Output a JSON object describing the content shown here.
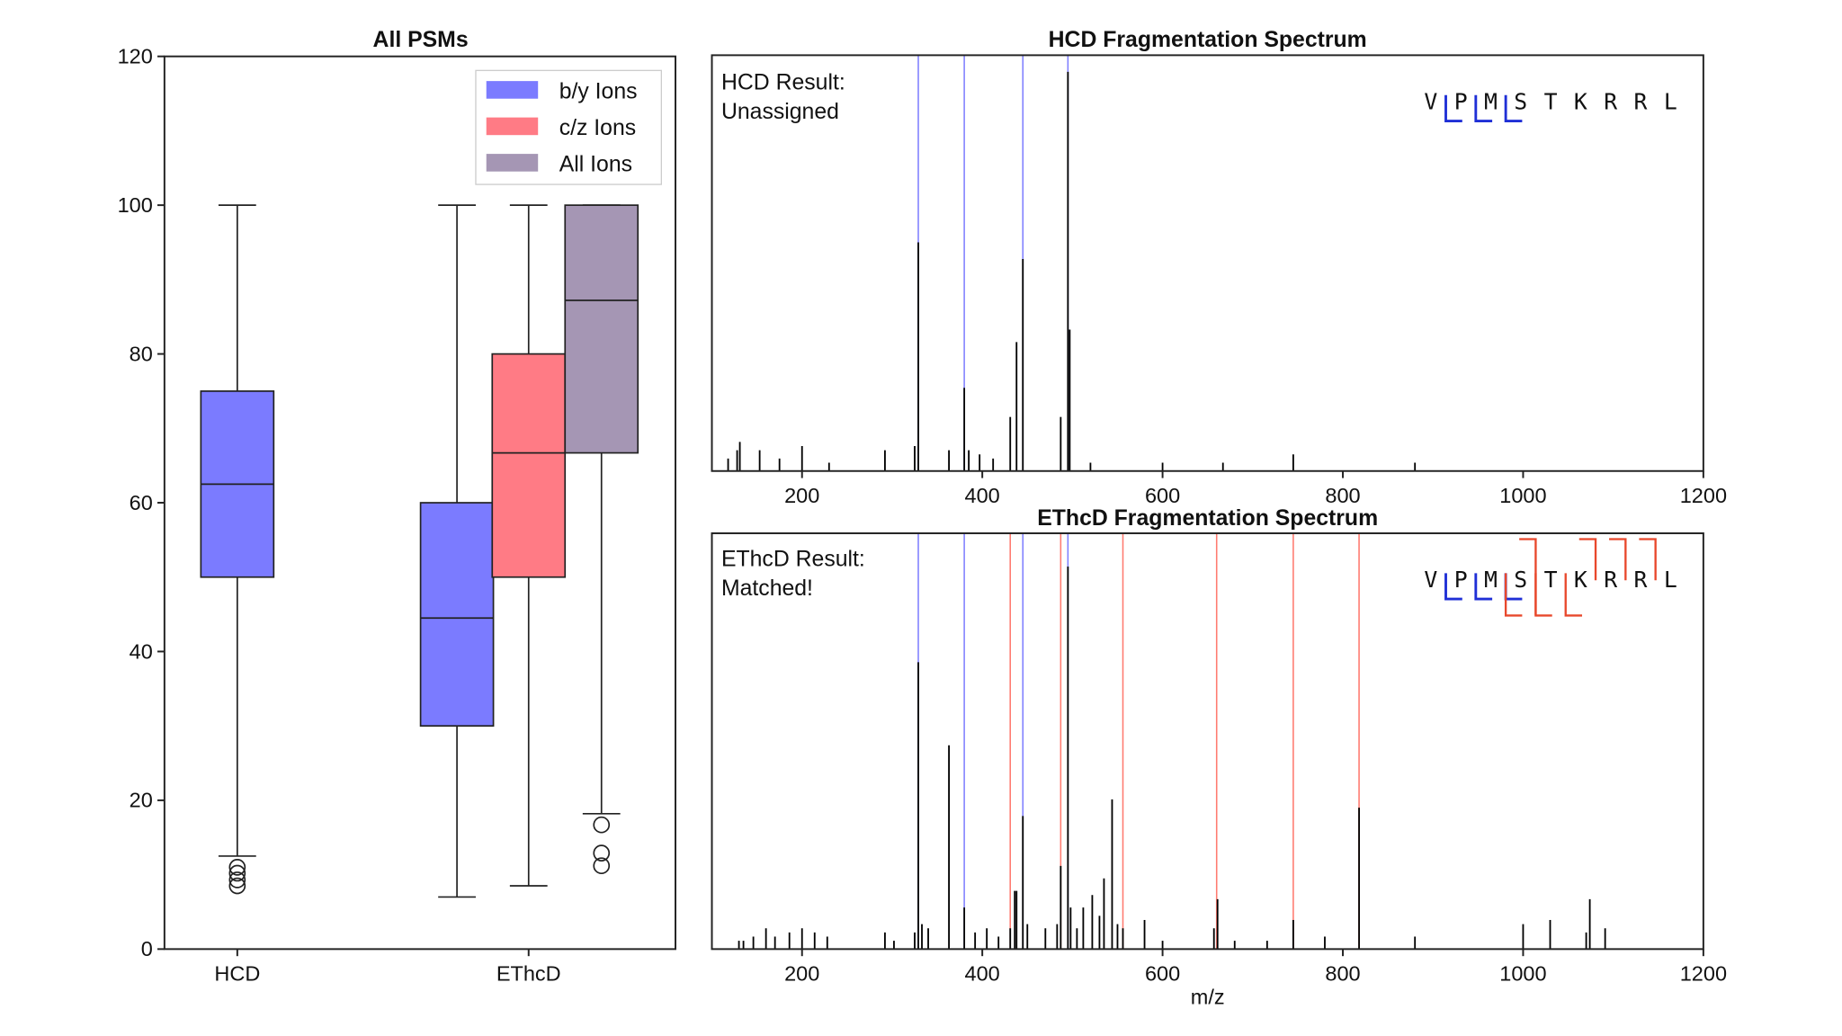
{
  "chart_data": [
    {
      "type": "box",
      "title": "All PSMs",
      "ylim": [
        0,
        120
      ],
      "yticks": [
        0,
        20,
        40,
        60,
        80,
        100,
        120
      ],
      "categories": [
        "HCD",
        "EThcD"
      ],
      "legend": {
        "placement": "top-right",
        "entries": [
          {
            "name": "b/y Ions",
            "color": "#7b7bff"
          },
          {
            "name": "c/z Ions",
            "color": "#ff7b85"
          },
          {
            "name": "All Ions",
            "color": "#a596b4"
          }
        ]
      },
      "boxes": [
        {
          "category": "HCD",
          "series": "b/y Ions",
          "whisker_low": 12.5,
          "q1": 50,
          "median": 62.5,
          "q3": 75,
          "whisker_high": 100,
          "outliers": [
            8.5,
            9.3,
            10.2,
            11
          ]
        },
        {
          "category": "EThcD",
          "series": "b/y Ions",
          "whisker_low": 7,
          "q1": 30,
          "median": 44.5,
          "q3": 60,
          "whisker_high": 100,
          "outliers": []
        },
        {
          "category": "EThcD",
          "series": "c/z Ions",
          "whisker_low": 8.5,
          "q1": 50,
          "median": 66.7,
          "q3": 80,
          "whisker_high": 100,
          "outliers": []
        },
        {
          "category": "EThcD",
          "series": "All Ions",
          "whisker_low": 18.2,
          "q1": 66.7,
          "median": 87.2,
          "q3": 100,
          "whisker_high": 100,
          "outliers": [
            16.7,
            12.9,
            11.2
          ]
        }
      ]
    },
    {
      "type": "spectrum",
      "title": "HCD Fragmentation Spectrum",
      "result_label": "HCD Result:",
      "result_value": "Unassigned",
      "result_color": "#e8482c",
      "xlim": [
        100,
        1200
      ],
      "xticks": [
        200,
        400,
        600,
        800,
        1000,
        1200
      ],
      "sequence": [
        "V",
        "P",
        "M",
        "S",
        "T",
        "K",
        "R",
        "R",
        "L"
      ],
      "b_ions_after": [
        1,
        2,
        3
      ],
      "c_ions_after": [],
      "z_ions_before": [],
      "matched_by_mz": [
        329,
        380,
        445,
        495
      ],
      "matched_cz_mz": [],
      "peaks": [
        [
          118,
          0.03
        ],
        [
          128,
          0.05
        ],
        [
          131,
          0.07
        ],
        [
          153,
          0.05
        ],
        [
          175,
          0.03
        ],
        [
          200,
          0.06
        ],
        [
          230,
          0.02
        ],
        [
          292,
          0.05
        ],
        [
          325,
          0.06
        ],
        [
          329,
          0.55
        ],
        [
          363,
          0.05
        ],
        [
          380,
          0.2
        ],
        [
          385,
          0.05
        ],
        [
          397,
          0.04
        ],
        [
          412,
          0.03
        ],
        [
          431,
          0.13
        ],
        [
          438,
          0.31
        ],
        [
          445,
          0.51
        ],
        [
          487,
          0.13
        ],
        [
          495,
          0.96
        ],
        [
          497,
          0.34
        ],
        [
          520,
          0.02
        ],
        [
          600,
          0.02
        ],
        [
          667,
          0.02
        ],
        [
          745,
          0.04
        ],
        [
          880,
          0.02
        ]
      ]
    },
    {
      "type": "spectrum",
      "title": "EThcD Fragmentation Spectrum",
      "result_label": "EThcD Result:",
      "result_value": "Matched!",
      "result_color": "#1a9a5c",
      "xlabel": "m/z",
      "xlim": [
        100,
        1200
      ],
      "xticks": [
        200,
        400,
        600,
        800,
        1000,
        1200
      ],
      "sequence": [
        "V",
        "P",
        "M",
        "S",
        "T",
        "K",
        "R",
        "R",
        "L"
      ],
      "b_ions_after": [
        1,
        2,
        3
      ],
      "c_ions_after": [
        3,
        4,
        5
      ],
      "z_ions_before": [
        4,
        6,
        7,
        8
      ],
      "matched_by_mz": [
        329,
        380,
        445,
        495
      ],
      "matched_cz_mz": [
        431,
        487,
        556,
        660,
        745,
        818
      ],
      "peaks": [
        [
          130,
          0.02
        ],
        [
          135,
          0.02
        ],
        [
          146,
          0.03
        ],
        [
          160,
          0.05
        ],
        [
          170,
          0.03
        ],
        [
          186,
          0.04
        ],
        [
          200,
          0.05
        ],
        [
          214,
          0.04
        ],
        [
          228,
          0.03
        ],
        [
          292,
          0.04
        ],
        [
          302,
          0.02
        ],
        [
          325,
          0.04
        ],
        [
          329,
          0.69
        ],
        [
          333,
          0.06
        ],
        [
          340,
          0.05
        ],
        [
          363,
          0.49
        ],
        [
          380,
          0.1
        ],
        [
          392,
          0.04
        ],
        [
          405,
          0.05
        ],
        [
          418,
          0.03
        ],
        [
          431,
          0.05
        ],
        [
          436,
          0.14
        ],
        [
          438,
          0.14
        ],
        [
          445,
          0.32
        ],
        [
          450,
          0.06
        ],
        [
          470,
          0.05
        ],
        [
          483,
          0.06
        ],
        [
          487,
          0.2
        ],
        [
          495,
          0.92
        ],
        [
          498,
          0.1
        ],
        [
          505,
          0.05
        ],
        [
          512,
          0.1
        ],
        [
          522,
          0.13
        ],
        [
          530,
          0.08
        ],
        [
          535,
          0.17
        ],
        [
          544,
          0.36
        ],
        [
          550,
          0.06
        ],
        [
          556,
          0.05
        ],
        [
          580,
          0.07
        ],
        [
          600,
          0.02
        ],
        [
          657,
          0.05
        ],
        [
          661,
          0.12
        ],
        [
          680,
          0.02
        ],
        [
          716,
          0.02
        ],
        [
          745,
          0.07
        ],
        [
          780,
          0.03
        ],
        [
          818,
          0.34
        ],
        [
          880,
          0.03
        ],
        [
          1000,
          0.06
        ],
        [
          1030,
          0.07
        ],
        [
          1070,
          0.04
        ],
        [
          1074,
          0.12
        ],
        [
          1091,
          0.05
        ]
      ]
    }
  ]
}
